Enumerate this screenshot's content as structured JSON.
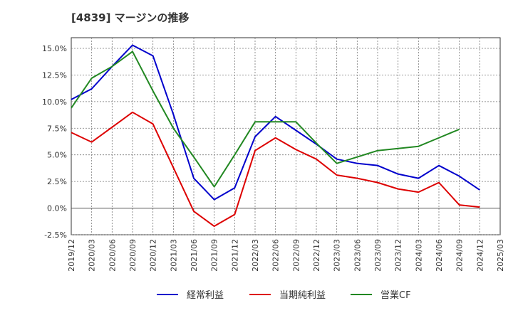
{
  "chart_data": {
    "type": "line",
    "title": "[4839]  マージンの推移",
    "x": [
      "2019/12",
      "2020/03",
      "2020/06",
      "2020/09",
      "2020/12",
      "2021/03",
      "2021/06",
      "2021/09",
      "2021/12",
      "2022/03",
      "2022/06",
      "2022/09",
      "2022/12",
      "2023/03",
      "2023/06",
      "2023/09",
      "2023/12",
      "2024/03",
      "2024/06",
      "2024/09",
      "2024/12",
      "2025/03"
    ],
    "y_ticks": [
      "15.0%",
      "12.5%",
      "10.0%",
      "7.5%",
      "5.0%",
      "2.5%",
      "0.0%",
      "-2.5%"
    ],
    "y_tick_values": [
      15.0,
      12.5,
      10.0,
      7.5,
      5.0,
      2.5,
      0.0,
      -2.5
    ],
    "ylim": [
      -2.5,
      16.0
    ],
    "grid": true,
    "legend_position": "bottom",
    "series": [
      {
        "name": "経常利益",
        "color": "#0000cc",
        "values": [
          10.2,
          11.2,
          13.3,
          15.3,
          14.3,
          8.8,
          2.8,
          0.8,
          1.9,
          6.7,
          8.6,
          7.3,
          6.0,
          4.6,
          4.2,
          4.0,
          3.2,
          2.8,
          4.0,
          3.0,
          1.7,
          null
        ]
      },
      {
        "name": "当期純利益",
        "color": "#dd0000",
        "values": [
          7.1,
          6.2,
          7.6,
          9.0,
          7.9,
          3.8,
          -0.3,
          -1.7,
          -0.6,
          5.4,
          6.6,
          5.5,
          4.6,
          3.1,
          2.8,
          2.4,
          1.8,
          1.5,
          2.4,
          0.3,
          0.1,
          null
        ]
      },
      {
        "name": "営業CF",
        "color": "#228822",
        "values": [
          9.4,
          12.2,
          13.3,
          14.7,
          11.0,
          7.5,
          4.8,
          2.0,
          5.0,
          8.1,
          8.1,
          8.1,
          6.1,
          4.2,
          4.8,
          5.4,
          5.6,
          5.8,
          6.6,
          7.4,
          null,
          null
        ]
      }
    ]
  }
}
